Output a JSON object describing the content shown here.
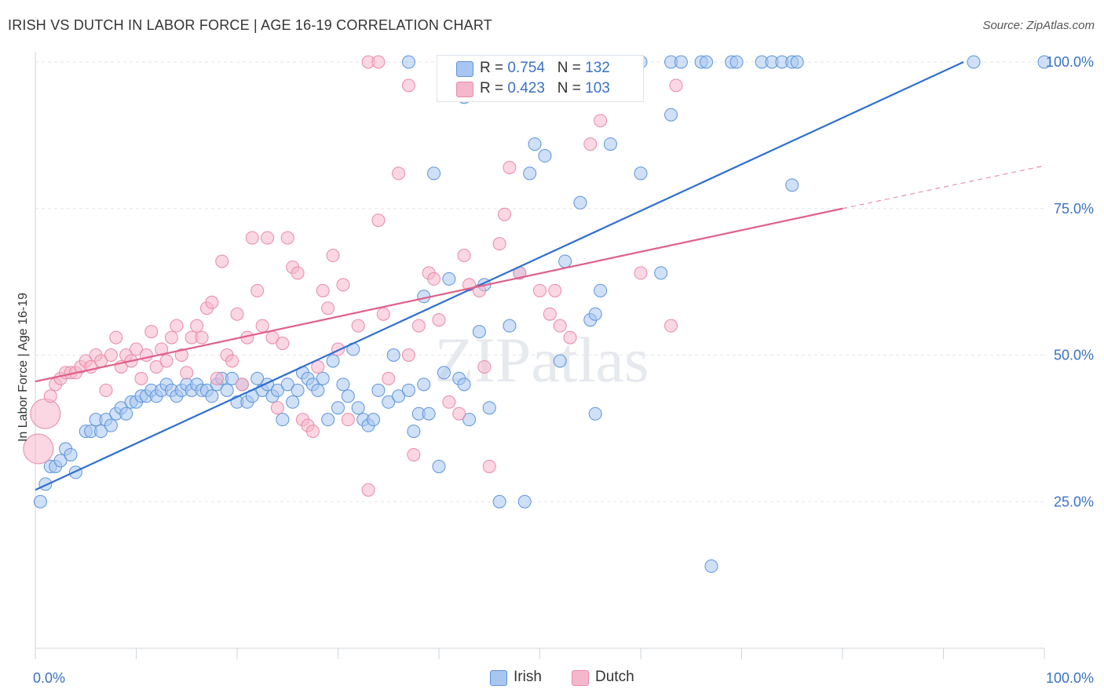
{
  "title": "IRISH VS DUTCH IN LABOR FORCE | AGE 16-19 CORRELATION CHART",
  "source": "Source: ZipAtlas.com",
  "watermark": "ZIPatlas",
  "stats": [
    {
      "r_label": "R = ",
      "r_value": "0.754",
      "n_label": "N = ",
      "n_value": "132",
      "color": "#a9c6f0"
    },
    {
      "r_label": "R = ",
      "r_value": "0.423",
      "n_label": "N = ",
      "n_value": "103",
      "color": "#f5b7cb"
    }
  ],
  "legend": [
    {
      "label": "Irish",
      "color": "#a9c6f0"
    },
    {
      "label": "Dutch",
      "color": "#f5b7cb"
    }
  ],
  "chart_data": {
    "type": "scatter",
    "title": "IRISH VS DUTCH IN LABOR FORCE | AGE 16-19 CORRELATION CHART",
    "xlabel": "",
    "ylabel": "In Labor Force | Age 16-19",
    "xlim": [
      0,
      100
    ],
    "ylim": [
      0,
      100
    ],
    "x_tick_labels": [
      "0.0%",
      "100.0%"
    ],
    "y_tick_labels": [
      "25.0%",
      "50.0%",
      "75.0%",
      "100.0%"
    ],
    "y_ticks": [
      25,
      50,
      75,
      100
    ],
    "grid": true,
    "legend_position": "bottom-center",
    "series": [
      {
        "name": "Irish",
        "color": "#5b94dc",
        "fill": "#a9c6f0",
        "trend_color": "#2e6fd0",
        "trend": {
          "x": [
            0,
            92
          ],
          "y": [
            27,
            100
          ]
        },
        "points": [
          [
            0.5,
            25
          ],
          [
            1,
            28
          ],
          [
            1.5,
            31
          ],
          [
            2,
            31
          ],
          [
            2.5,
            32
          ],
          [
            3,
            34
          ],
          [
            3.5,
            33
          ],
          [
            4,
            30
          ],
          [
            5,
            37
          ],
          [
            5.5,
            37
          ],
          [
            6,
            39
          ],
          [
            6.5,
            37
          ],
          [
            7,
            39
          ],
          [
            7.5,
            38
          ],
          [
            8,
            40
          ],
          [
            8.5,
            41
          ],
          [
            9,
            40
          ],
          [
            9.5,
            42
          ],
          [
            10,
            42
          ],
          [
            10.5,
            43
          ],
          [
            11,
            43
          ],
          [
            11.5,
            44
          ],
          [
            12,
            43
          ],
          [
            12.5,
            44
          ],
          [
            13,
            45
          ],
          [
            13.5,
            44
          ],
          [
            14,
            43
          ],
          [
            14.5,
            44
          ],
          [
            15,
            45
          ],
          [
            15.5,
            44
          ],
          [
            16,
            45
          ],
          [
            16.5,
            44
          ],
          [
            17,
            44
          ],
          [
            17.5,
            43
          ],
          [
            18,
            45
          ],
          [
            18.5,
            46
          ],
          [
            19,
            44
          ],
          [
            19.5,
            46
          ],
          [
            20,
            42
          ],
          [
            20.5,
            45
          ],
          [
            21,
            42
          ],
          [
            21.5,
            43
          ],
          [
            22,
            46
          ],
          [
            22.5,
            44
          ],
          [
            23,
            45
          ],
          [
            23.5,
            43
          ],
          [
            24,
            44
          ],
          [
            24.5,
            39
          ],
          [
            25,
            45
          ],
          [
            25.5,
            42
          ],
          [
            26,
            44
          ],
          [
            26.5,
            47
          ],
          [
            27,
            46
          ],
          [
            27.5,
            45
          ],
          [
            28,
            44
          ],
          [
            28.5,
            46
          ],
          [
            29,
            39
          ],
          [
            29.5,
            49
          ],
          [
            30,
            41
          ],
          [
            30.5,
            45
          ],
          [
            31,
            43
          ],
          [
            31.5,
            51
          ],
          [
            32,
            41
          ],
          [
            32.5,
            39
          ],
          [
            33,
            38
          ],
          [
            33.5,
            39
          ],
          [
            34,
            44
          ],
          [
            35,
            42
          ],
          [
            35.5,
            50
          ],
          [
            36,
            43
          ],
          [
            37,
            44
          ],
          [
            37.5,
            37
          ],
          [
            38,
            40
          ],
          [
            38.5,
            45
          ],
          [
            39,
            40
          ],
          [
            40,
            31
          ],
          [
            40.5,
            47
          ],
          [
            41,
            63
          ],
          [
            42,
            46
          ],
          [
            42.5,
            45
          ],
          [
            43,
            39
          ],
          [
            44,
            54
          ],
          [
            44.5,
            62
          ],
          [
            45,
            41
          ],
          [
            46,
            25
          ],
          [
            47,
            55
          ],
          [
            48,
            64
          ],
          [
            48.5,
            25
          ],
          [
            49,
            81
          ],
          [
            49.5,
            86
          ],
          [
            50.5,
            84
          ],
          [
            52,
            49
          ],
          [
            52.5,
            66
          ],
          [
            54,
            76
          ],
          [
            55,
            56
          ],
          [
            55.5,
            57
          ],
          [
            56,
            61
          ],
          [
            57,
            86
          ],
          [
            60,
            81
          ],
          [
            62,
            64
          ],
          [
            63,
            91
          ],
          [
            67,
            14
          ],
          [
            75,
            79
          ],
          [
            42.5,
            94
          ],
          [
            38.5,
            60
          ],
          [
            39.5,
            81
          ],
          [
            55.5,
            40
          ],
          [
            54,
            100
          ],
          [
            55,
            100
          ],
          [
            56,
            100
          ],
          [
            60,
            100
          ],
          [
            63,
            100
          ],
          [
            64,
            100
          ],
          [
            66,
            100
          ],
          [
            66.5,
            100
          ],
          [
            69,
            100
          ],
          [
            69.5,
            100
          ],
          [
            72,
            100
          ],
          [
            73,
            100
          ],
          [
            74,
            100
          ],
          [
            75,
            100
          ],
          [
            75.5,
            100
          ],
          [
            93,
            100
          ],
          [
            100,
            100
          ],
          [
            37,
            100
          ],
          [
            44,
            100
          ]
        ]
      },
      {
        "name": "Dutch",
        "color": "#e98aa8",
        "fill": "#f5b7cb",
        "trend_color": "#e0608a",
        "trend": {
          "x": [
            0,
            80
          ],
          "y": [
            45.5,
            75
          ]
        },
        "trend_dashed": {
          "x": [
            80,
            100
          ],
          "y": [
            75,
            82.3
          ]
        },
        "points": [
          [
            0.3,
            34
          ],
          [
            1,
            40
          ],
          [
            1.5,
            43
          ],
          [
            2,
            45
          ],
          [
            2.5,
            46
          ],
          [
            3,
            47
          ],
          [
            3.5,
            47
          ],
          [
            4,
            47
          ],
          [
            4.5,
            48
          ],
          [
            5,
            49
          ],
          [
            5.5,
            48
          ],
          [
            6,
            50
          ],
          [
            6.5,
            49
          ],
          [
            7,
            44
          ],
          [
            7.5,
            50
          ],
          [
            8,
            53
          ],
          [
            8.5,
            48
          ],
          [
            9,
            50
          ],
          [
            9.5,
            49
          ],
          [
            10,
            51
          ],
          [
            10.5,
            46
          ],
          [
            11,
            50
          ],
          [
            11.5,
            54
          ],
          [
            12,
            48
          ],
          [
            12.5,
            51
          ],
          [
            13,
            49
          ],
          [
            13.5,
            53
          ],
          [
            14,
            55
          ],
          [
            14.5,
            50
          ],
          [
            15,
            47
          ],
          [
            15.5,
            53
          ],
          [
            16,
            55
          ],
          [
            16.5,
            53
          ],
          [
            17,
            58
          ],
          [
            17.5,
            59
          ],
          [
            18,
            46
          ],
          [
            18.5,
            66
          ],
          [
            19,
            50
          ],
          [
            19.5,
            49
          ],
          [
            20,
            57
          ],
          [
            20.5,
            45
          ],
          [
            21,
            53
          ],
          [
            21.5,
            70
          ],
          [
            22,
            61
          ],
          [
            22.5,
            55
          ],
          [
            23,
            70
          ],
          [
            23.5,
            53
          ],
          [
            24,
            41
          ],
          [
            24.5,
            52
          ],
          [
            25,
            70
          ],
          [
            25.5,
            65
          ],
          [
            26,
            64
          ],
          [
            26.5,
            39
          ],
          [
            27,
            38
          ],
          [
            27.5,
            37
          ],
          [
            28,
            48
          ],
          [
            28.5,
            61
          ],
          [
            29,
            58
          ],
          [
            29.5,
            67
          ],
          [
            30,
            51
          ],
          [
            30.5,
            62
          ],
          [
            31,
            39
          ],
          [
            32,
            55
          ],
          [
            33,
            27
          ],
          [
            34,
            73
          ],
          [
            34.5,
            57
          ],
          [
            35,
            46
          ],
          [
            36,
            81
          ],
          [
            37,
            50
          ],
          [
            37.5,
            33
          ],
          [
            38,
            55
          ],
          [
            39,
            64
          ],
          [
            39.5,
            63
          ],
          [
            40,
            56
          ],
          [
            41,
            42
          ],
          [
            42,
            40
          ],
          [
            42.5,
            67
          ],
          [
            43,
            62
          ],
          [
            44,
            61
          ],
          [
            44.5,
            48
          ],
          [
            45,
            31
          ],
          [
            46,
            69
          ],
          [
            46.5,
            74
          ],
          [
            47,
            82
          ],
          [
            48,
            64
          ],
          [
            50,
            61
          ],
          [
            51,
            57
          ],
          [
            51.5,
            61
          ],
          [
            52,
            55
          ],
          [
            53,
            53
          ],
          [
            55,
            86
          ],
          [
            56,
            90
          ],
          [
            60,
            64
          ],
          [
            63,
            55
          ],
          [
            63.5,
            96
          ],
          [
            37,
            96
          ],
          [
            57,
            100
          ],
          [
            48,
            100
          ],
          [
            33,
            100
          ],
          [
            34,
            100
          ]
        ]
      }
    ]
  }
}
